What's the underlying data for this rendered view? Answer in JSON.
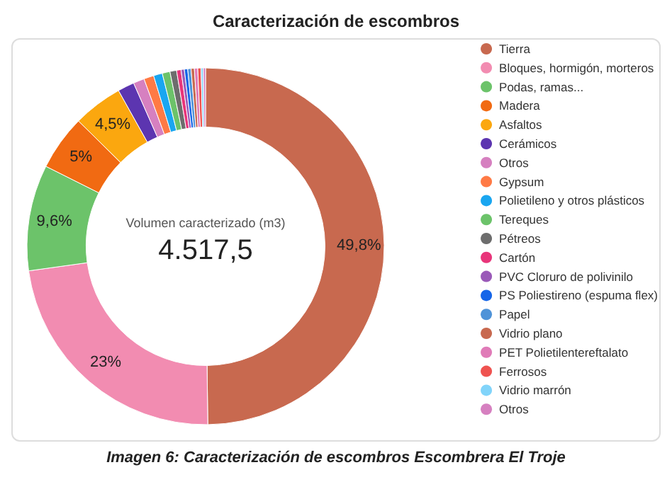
{
  "chart_data": {
    "type": "donut",
    "title": "Caracterización de escombros",
    "categories": [
      "Tierra",
      "Bloques, hormigón, morteros",
      "Podas, ramas...",
      "Madera",
      "Asfaltos",
      "Cerámicos",
      "Otros",
      "Gypsum",
      "Polietileno y otros plásticos",
      "Tereques",
      "Pétreos",
      "Cartón",
      "PVC Cloruro de polivinilo",
      "PS Poliestireno (espuma flex)",
      "Papel",
      "Vidrio plano",
      "PET Polietilentereftalato",
      "Ferrosos",
      "Vidrio marrón",
      "Otros"
    ],
    "values": [
      49.8,
      23,
      9.6,
      5,
      4.5,
      1.5,
      1.0,
      0.9,
      0.8,
      0.7,
      0.6,
      0.4,
      0.3,
      0.3,
      0.3,
      0.3,
      0.3,
      0.3,
      0.2,
      0.2
    ],
    "colors": [
      "#c8694f",
      "#f28cb1",
      "#6cc36a",
      "#f16a12",
      "#fba70f",
      "#5c35b0",
      "#d680c0",
      "#ff7a45",
      "#1aa6f0",
      "#6cc36a",
      "#6d6d6d",
      "#e8357a",
      "#9a5ab8",
      "#1565e8",
      "#4f93d8",
      "#c8694f",
      "#e07bb8",
      "#ef5350",
      "#81d4fa",
      "#d680c0"
    ],
    "value_labels": [
      "49,8%",
      "23%",
      "9,6%",
      "5%",
      "4,5%",
      null,
      null,
      null,
      null,
      null,
      null,
      null,
      null,
      null,
      null,
      null,
      null,
      null,
      null,
      null
    ],
    "legend": "right",
    "annotations": [
      "Volumen caracterizado (m3)",
      "4.517,5",
      "Imagen 6: Caracterización de escombros Escombrera El Troje"
    ]
  }
}
